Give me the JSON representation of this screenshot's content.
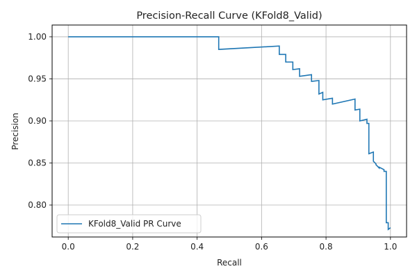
{
  "chart_data": {
    "type": "line",
    "title": "Precision-Recall Curve (KFold8_Valid)",
    "xlabel": "Recall",
    "ylabel": "Precision",
    "xlim": [
      -0.05,
      1.05
    ],
    "ylim": [
      0.762,
      1.014
    ],
    "xticks": [
      0.0,
      0.2,
      0.4,
      0.6,
      0.8,
      1.0
    ],
    "xtick_labels": [
      "0.0",
      "0.2",
      "0.4",
      "0.6",
      "0.8",
      "1.0"
    ],
    "yticks": [
      0.8,
      0.85,
      0.9,
      0.95,
      1.0
    ],
    "ytick_labels": [
      "0.80",
      "0.85",
      "0.90",
      "0.95",
      "1.00"
    ],
    "grid": true,
    "legend_position": "lower-left",
    "series": [
      {
        "name": "KFold8_Valid PR Curve",
        "color": "#1f77b4",
        "x": [
          0.0,
          0.467,
          0.467,
          0.655,
          0.655,
          0.675,
          0.675,
          0.697,
          0.697,
          0.718,
          0.718,
          0.755,
          0.755,
          0.778,
          0.778,
          0.79,
          0.79,
          0.82,
          0.82,
          0.89,
          0.89,
          0.905,
          0.905,
          0.927,
          0.927,
          0.933,
          0.933,
          0.947,
          0.947,
          0.955,
          0.955,
          0.965,
          0.965,
          0.98,
          0.98,
          0.987,
          0.987,
          0.993,
          0.993,
          1.0
        ],
        "y": [
          1.0,
          1.0,
          0.985,
          0.989,
          0.979,
          0.979,
          0.97,
          0.97,
          0.961,
          0.962,
          0.953,
          0.955,
          0.947,
          0.948,
          0.932,
          0.934,
          0.925,
          0.927,
          0.92,
          0.926,
          0.913,
          0.914,
          0.9,
          0.902,
          0.897,
          0.897,
          0.861,
          0.863,
          0.852,
          0.849,
          0.848,
          0.844,
          0.845,
          0.842,
          0.84,
          0.84,
          0.779,
          0.779,
          0.771,
          0.773
        ]
      }
    ]
  }
}
